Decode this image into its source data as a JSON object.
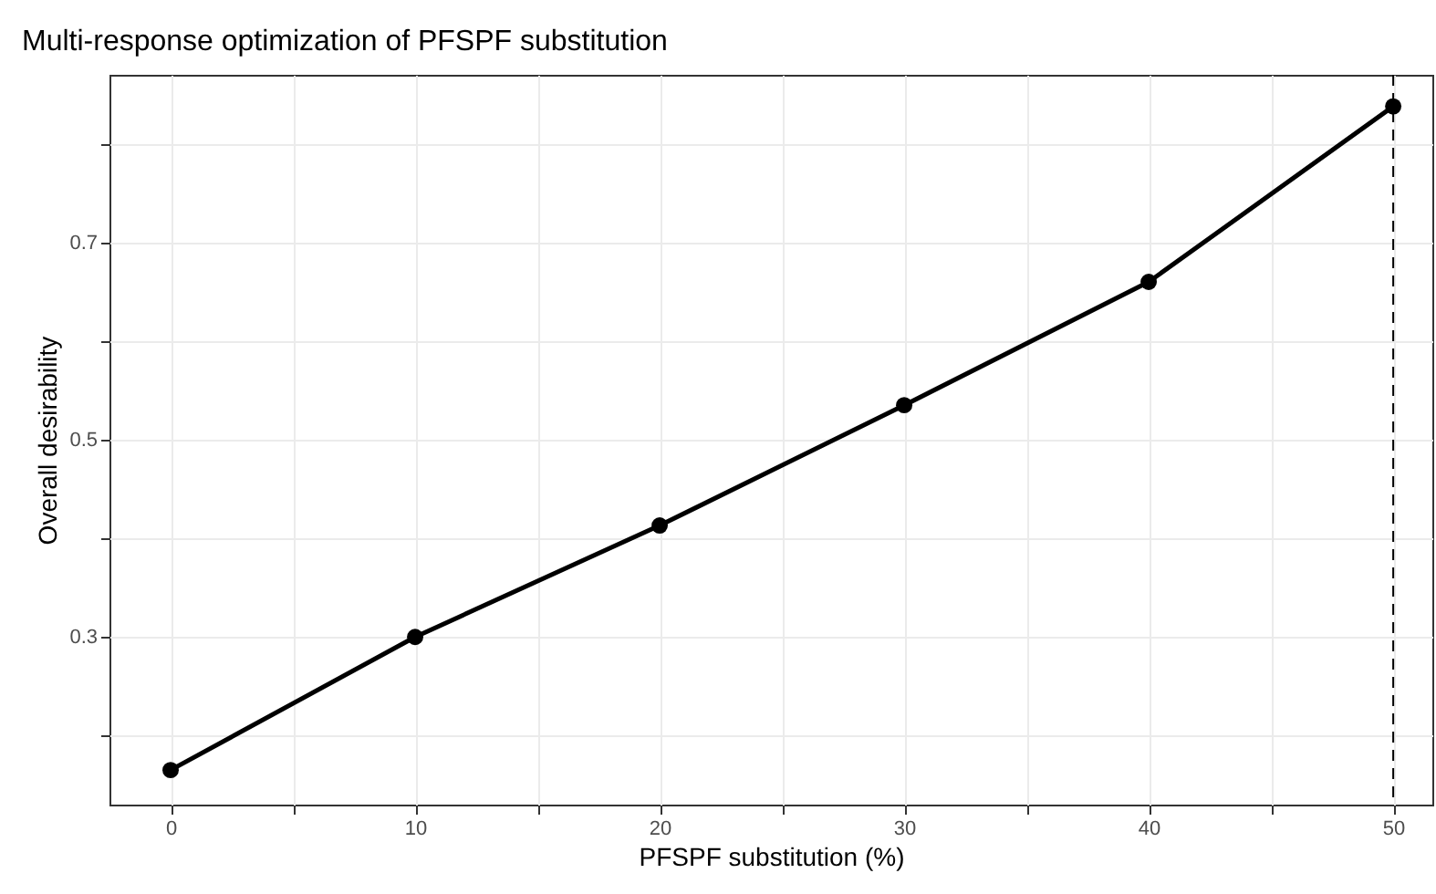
{
  "chart_data": {
    "type": "line",
    "title": "Multi-response optimization of PFSPF substitution",
    "xlabel": "PFSPF substitution (%)",
    "ylabel": "Overall desirability",
    "x": [
      0,
      10,
      20,
      30,
      40,
      50
    ],
    "series": [
      {
        "color": "#000000",
        "values": [
          0.165,
          0.3,
          0.413,
          0.535,
          0.66,
          0.838
        ]
      }
    ],
    "xlim": [
      -2.5,
      51.6
    ],
    "xticks": [
      0,
      {
        "value": 5,
        "label": null
      },
      10,
      {
        "value": 15,
        "label": null
      },
      20,
      {
        "value": 25,
        "label": null
      },
      30,
      {
        "value": 35,
        "label": null
      },
      40,
      {
        "value": 45,
        "label": null
      },
      50
    ],
    "ylim": [
      0.13,
      0.87
    ],
    "yticks": [
      {
        "value": 0.2,
        "label": null
      },
      0.3,
      {
        "value": 0.4,
        "label": null
      },
      0.5,
      {
        "value": 0.6,
        "label": null
      },
      0.7,
      {
        "value": 0.8,
        "label": null
      }
    ],
    "ref_lines": [
      {
        "axis": "x",
        "value": 50,
        "line_style": "dashed",
        "color": "#000000"
      }
    ],
    "grid": true,
    "marker": "circle",
    "line_style": "solid"
  }
}
